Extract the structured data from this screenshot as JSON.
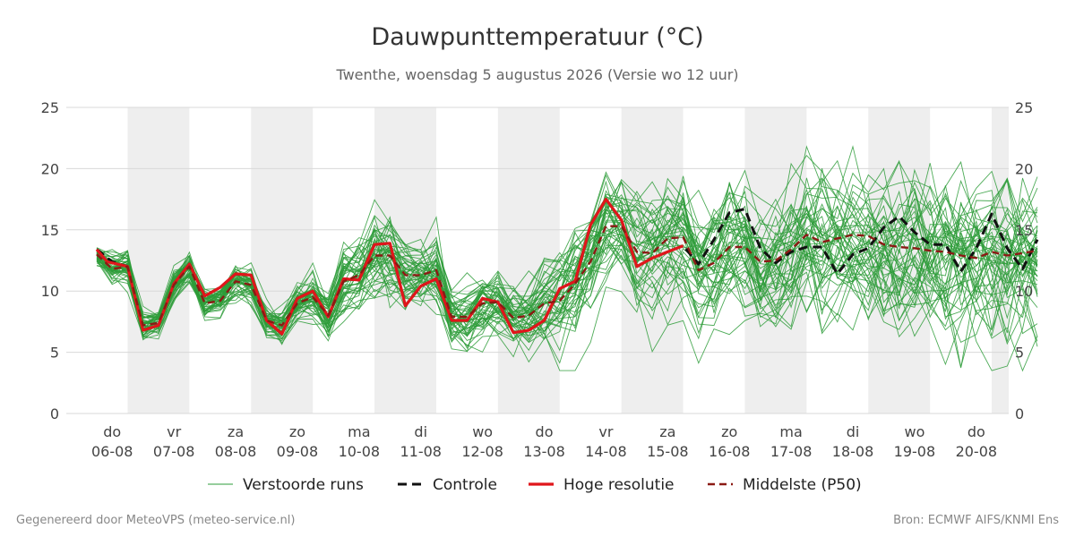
{
  "chart_data": {
    "type": "line",
    "title": "Dauwpunttemperatuur (°C)",
    "subtitle": "Twenthe, woensdag  5 augustus 2026 (Versie wo 12 uur)",
    "ylim": [
      0,
      25
    ],
    "yticks": [
      0,
      5,
      10,
      15,
      20,
      25
    ],
    "grid": true,
    "xlim": [
      0,
      15.24
    ],
    "x_ticks": [
      {
        "x": 0.25,
        "day": "do",
        "date": "06-08"
      },
      {
        "x": 1.25,
        "day": "vr",
        "date": "07-08"
      },
      {
        "x": 2.25,
        "day": "za",
        "date": "08-08"
      },
      {
        "x": 3.25,
        "day": "zo",
        "date": "09-08"
      },
      {
        "x": 4.25,
        "day": "ma",
        "date": "10-08"
      },
      {
        "x": 5.25,
        "day": "di",
        "date": "11-08"
      },
      {
        "x": 6.25,
        "day": "wo",
        "date": "12-08"
      },
      {
        "x": 7.25,
        "day": "do",
        "date": "13-08"
      },
      {
        "x": 8.25,
        "day": "vr",
        "date": "14-08"
      },
      {
        "x": 9.25,
        "day": "za",
        "date": "15-08"
      },
      {
        "x": 10.25,
        "day": "zo",
        "date": "16-08"
      },
      {
        "x": 11.25,
        "day": "ma",
        "date": "17-08"
      },
      {
        "x": 12.25,
        "day": "di",
        "date": "18-08"
      },
      {
        "x": 13.25,
        "day": "wo",
        "date": "19-08"
      },
      {
        "x": 14.25,
        "day": "do",
        "date": "20-08"
      }
    ],
    "shaded_days": [
      [
        0.5,
        1.5
      ],
      [
        2.5,
        3.5
      ],
      [
        4.5,
        5.5
      ],
      [
        6.5,
        7.5
      ],
      [
        8.5,
        9.5
      ],
      [
        10.5,
        11.5
      ],
      [
        12.5,
        13.5
      ],
      [
        14.5,
        15.24
      ]
    ],
    "hires_x": [
      0.0,
      0.17,
      0.5,
      0.75,
      1.0,
      1.25,
      1.5,
      1.75,
      2.0,
      2.25,
      2.5,
      2.75,
      3.0,
      3.25,
      3.5,
      3.75,
      4.0,
      4.25,
      4.5,
      4.75,
      5.0,
      5.25,
      5.5,
      5.75,
      6.0,
      6.25,
      6.5,
      6.75,
      7.0,
      7.25,
      7.5,
      7.75,
      8.0,
      8.25,
      8.5,
      8.75,
      9.0,
      9.25,
      9.5
    ],
    "hires": [
      13.4,
      12.4,
      12.0,
      6.8,
      7.2,
      10.6,
      12.2,
      9.6,
      10.3,
      11.4,
      11.3,
      7.6,
      6.5,
      9.4,
      10.0,
      7.9,
      11.0,
      10.9,
      13.8,
      13.9,
      8.8,
      10.4,
      11.0,
      7.6,
      7.6,
      9.4,
      9.1,
      6.6,
      6.8,
      7.6,
      10.2,
      10.8,
      15.4,
      17.5,
      15.8,
      12.0,
      12.7,
      13.2,
      13.7
    ],
    "control_x": [
      0.0,
      0.25,
      0.5,
      0.75,
      1.0,
      1.25,
      1.5,
      1.75,
      2.0,
      2.25,
      2.5,
      2.75,
      3.0,
      3.25,
      3.5,
      3.75,
      4.0,
      4.25,
      4.5,
      4.75,
      5.0,
      5.25,
      5.5,
      5.75,
      6.0,
      6.25,
      6.5,
      6.75,
      7.0,
      7.25,
      7.5,
      7.75,
      8.0,
      8.25,
      8.5,
      8.75,
      9.0,
      9.25,
      9.5,
      9.75,
      10.0,
      10.25,
      10.5,
      10.75,
      11.0,
      11.25,
      11.5,
      11.75,
      12.0,
      12.25,
      12.5,
      12.75,
      13.0,
      13.25,
      13.5,
      13.75,
      14.0,
      14.25,
      14.5,
      14.75,
      15.0,
      15.24
    ],
    "control": [
      13.4,
      12.4,
      12.0,
      6.8,
      7.2,
      10.6,
      12.2,
      9.6,
      10.3,
      11.4,
      11.3,
      7.6,
      6.5,
      9.4,
      10.0,
      7.9,
      11.0,
      10.9,
      13.8,
      13.9,
      8.8,
      10.4,
      11.0,
      7.6,
      7.6,
      9.4,
      9.1,
      6.6,
      6.8,
      7.6,
      10.2,
      10.8,
      15.4,
      17.5,
      15.8,
      12.0,
      12.7,
      13.2,
      13.7,
      12.2,
      14.2,
      16.4,
      16.7,
      13.5,
      12.3,
      13.2,
      13.6,
      13.6,
      11.4,
      13.0,
      13.5,
      15.2,
      16.1,
      14.8,
      13.8,
      13.8,
      11.6,
      13.5,
      16.3,
      13.5,
      11.8,
      14.2
    ],
    "p50_x": [
      0.0,
      0.25,
      0.5,
      0.75,
      1.0,
      1.25,
      1.5,
      1.75,
      2.0,
      2.25,
      2.5,
      2.75,
      3.0,
      3.25,
      3.5,
      3.75,
      4.0,
      4.25,
      4.5,
      4.75,
      5.0,
      5.25,
      5.5,
      5.75,
      6.0,
      6.25,
      6.5,
      6.75,
      7.0,
      7.25,
      7.5,
      7.75,
      8.0,
      8.25,
      8.5,
      8.75,
      9.0,
      9.25,
      9.5,
      9.75,
      10.0,
      10.25,
      10.5,
      10.75,
      11.0,
      11.25,
      11.5,
      11.75,
      12.0,
      12.25,
      12.5,
      12.75,
      13.0,
      13.25,
      13.5,
      13.75,
      14.0,
      14.25,
      14.5,
      14.75,
      15.0,
      15.24
    ],
    "p50": [
      13.0,
      11.8,
      12.0,
      7.2,
      7.4,
      10.5,
      12.0,
      9.0,
      9.2,
      10.8,
      10.5,
      7.6,
      7.2,
      9.0,
      9.5,
      8.0,
      10.8,
      11.3,
      12.9,
      12.9,
      11.3,
      11.3,
      11.7,
      7.9,
      7.9,
      9.0,
      9.1,
      7.8,
      8.0,
      9.0,
      9.2,
      10.6,
      12.4,
      15.3,
      15.3,
      13.2,
      13.1,
      14.3,
      14.4,
      11.7,
      12.3,
      13.6,
      13.6,
      12.4,
      12.5,
      13.4,
      14.6,
      14.0,
      14.3,
      14.6,
      14.5,
      13.8,
      13.6,
      13.5,
      13.3,
      13.2,
      12.9,
      12.7,
      13.2,
      12.9,
      13.1,
      13.3
    ],
    "ensemble_count": 50,
    "ensemble_spread": [
      0.6,
      0.8,
      0.8,
      0.7,
      0.6,
      0.7,
      0.6,
      0.7,
      0.8,
      0.8,
      0.8,
      0.7,
      0.8,
      0.9,
      1.1,
      1.1,
      1.5,
      1.6,
      1.7,
      1.8,
      1.5,
      1.5,
      1.6,
      1.3,
      1.3,
      1.4,
      1.5,
      1.6,
      1.6,
      1.8,
      2.0,
      2.1,
      2.3,
      2.4,
      2.5,
      2.6,
      2.6,
      2.7,
      2.7,
      2.8,
      2.8,
      2.9,
      2.9,
      3.0,
      3.0,
      3.0,
      3.0,
      3.1,
      3.1,
      3.1,
      3.1,
      3.2,
      3.2,
      3.2,
      3.2,
      3.3,
      3.3,
      3.3,
      3.3,
      3.3,
      3.3,
      3.4
    ],
    "legend": {
      "position": "bottom-center",
      "items": [
        {
          "label": "Verstoorde runs",
          "color": "#2e9c3a",
          "style": "thin"
        },
        {
          "label": "Controle",
          "color": "#111111",
          "style": "dashed"
        },
        {
          "label": "Hoge resolutie",
          "color": "#e0161b",
          "style": "thick"
        },
        {
          "label": "Middelste (P50)",
          "color": "#8b1a14",
          "style": "dashed"
        }
      ]
    },
    "colors": {
      "ensemble": "#2e9c3a",
      "control": "#111111",
      "hires": "#e0161b",
      "p50": "#8b1a14",
      "shading": "#eeeeee",
      "grid": "#d8d8d8"
    }
  },
  "footer": {
    "left": "Gegenereerd door MeteoVPS (meteo-service.nl)",
    "right": "Bron: ECMWF AIFS/KNMI Ens"
  }
}
